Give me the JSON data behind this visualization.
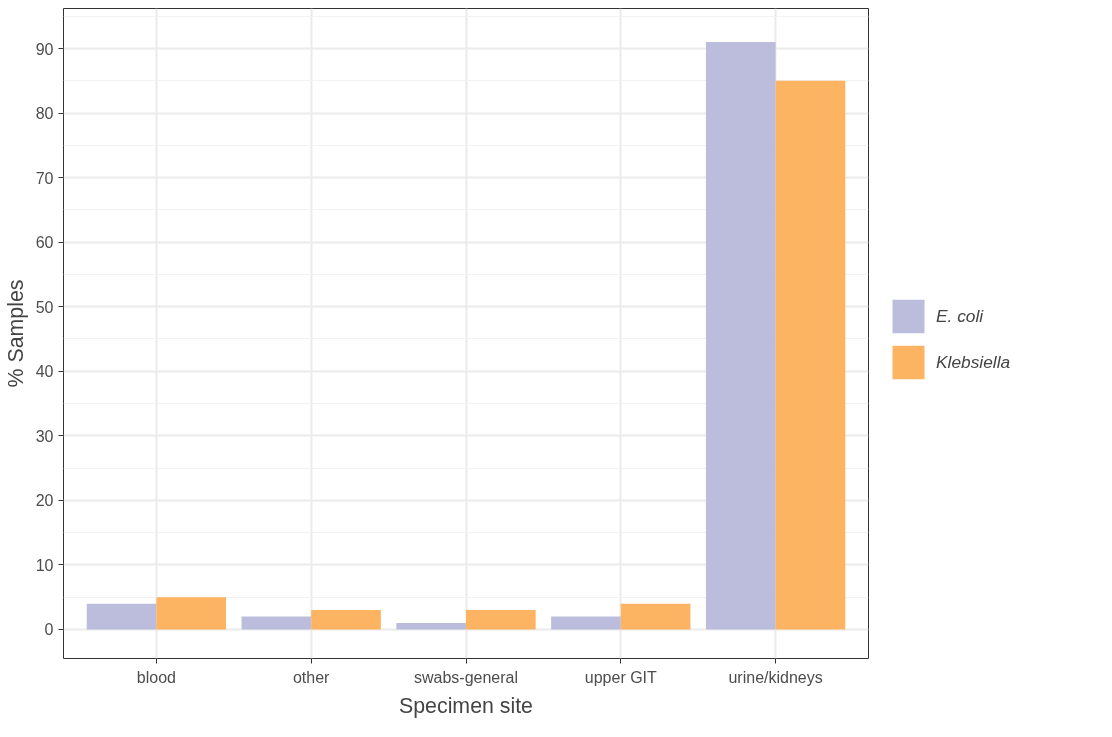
{
  "chart_data": {
    "type": "bar",
    "xlabel": "Specimen site",
    "ylabel": "% Samples",
    "categories": [
      "blood",
      "other",
      "swabs-general",
      "upper GIT",
      "urine/kidneys"
    ],
    "series": [
      {
        "name": "E. coli",
        "color": "#bcbddc",
        "values": [
          4,
          2,
          1,
          2,
          91
        ]
      },
      {
        "name": "Klebsiella",
        "color": "#fdb462",
        "values": [
          5,
          3,
          3,
          4,
          85
        ]
      }
    ],
    "ylim": [
      -4.5,
      96.2
    ],
    "yticks": [
      0,
      10,
      20,
      30,
      40,
      50,
      60,
      70,
      80,
      90
    ],
    "grid": true,
    "legend": "right"
  }
}
